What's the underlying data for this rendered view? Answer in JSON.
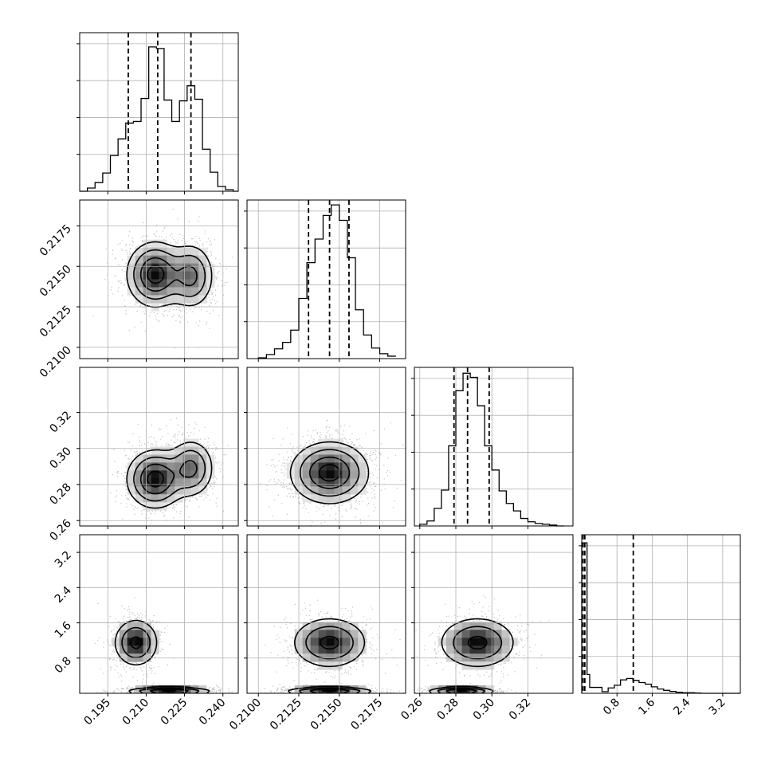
{
  "chart_data": {
    "type": "corner",
    "title": "",
    "parameters": [
      {
        "id": "p0",
        "label": "",
        "range": [
          0.184,
          0.246
        ],
        "ticks": [
          0.195,
          0.21,
          0.225,
          0.24
        ],
        "tick_labels": [
          "0.195",
          "0.210",
          "0.225",
          "0.240"
        ],
        "quantiles": [
          0.203,
          0.2145,
          0.2275
        ],
        "histogram": {
          "bin_edges": [
            0.184,
            0.187,
            0.19,
            0.193,
            0.196,
            0.199,
            0.202,
            0.205,
            0.208,
            0.211,
            0.214,
            0.217,
            0.22,
            0.223,
            0.226,
            0.229,
            0.232,
            0.235,
            0.238,
            0.241,
            0.244,
            0.246
          ],
          "counts": [
            0,
            4,
            11,
            23,
            45,
            66,
            86,
            88,
            117,
            182,
            180,
            115,
            88,
            114,
            133,
            116,
            53,
            24,
            6,
            2,
            0
          ],
          "ylim": [
            0,
            200
          ]
        }
      },
      {
        "id": "p1",
        "label": "",
        "range": [
          0.2093,
          0.2191
        ],
        "ticks": [
          0.21,
          0.2125,
          0.215,
          0.2175
        ],
        "tick_labels": [
          "0.2100",
          "0.2125",
          "0.2150",
          "0.2175"
        ],
        "quantiles": [
          0.2131,
          0.2144,
          0.2156
        ],
        "histogram": {
          "bin_edges": [
            0.21,
            0.2105,
            0.211,
            0.2115,
            0.212,
            0.2125,
            0.213,
            0.2135,
            0.214,
            0.2145,
            0.215,
            0.2155,
            0.216,
            0.2165,
            0.217,
            0.2175,
            0.218,
            0.2185
          ],
          "counts": [
            1,
            5,
            12,
            20,
            35,
            74,
            118,
            147,
            176,
            189,
            170,
            124,
            60,
            29,
            13,
            6,
            3
          ],
          "ylim": [
            0,
            195
          ]
        }
      },
      {
        "id": "p2",
        "label": "",
        "range": [
          0.257,
          0.345
        ],
        "ticks": [
          0.26,
          0.28,
          0.3,
          0.32
        ],
        "tick_labels": [
          "0.26",
          "0.28",
          "0.30",
          "0.32"
        ],
        "quantiles": [
          0.279,
          0.2865,
          0.2985
        ],
        "histogram": {
          "bin_edges": [
            0.26,
            0.264,
            0.268,
            0.272,
            0.276,
            0.28,
            0.284,
            0.288,
            0.292,
            0.296,
            0.3,
            0.304,
            0.308,
            0.312,
            0.316,
            0.32,
            0.324,
            0.328,
            0.332,
            0.336,
            0.34
          ],
          "counts": [
            2,
            6,
            21,
            43,
            96,
            162,
            183,
            178,
            144,
            96,
            67,
            42,
            27,
            18,
            9,
            5,
            3,
            2,
            1,
            0
          ],
          "ylim": [
            0,
            190
          ]
        }
      },
      {
        "id": "p3",
        "label": "",
        "range": [
          0.0,
          3.6
        ],
        "ticks": [
          0.8,
          1.6,
          2.4,
          3.2
        ],
        "tick_labels": [
          "0.8",
          "1.6",
          "2.4",
          "3.2"
        ],
        "quantiles": [
          0.03,
          0.07,
          1.17
        ],
        "histogram": {
          "bin_edges": [
            0.0,
            0.06,
            0.12,
            0.18,
            0.32,
            0.46,
            0.6,
            0.74,
            0.88,
            1.02,
            1.16,
            1.3,
            1.44,
            1.58,
            1.72,
            1.86,
            2.0,
            2.14,
            2.28,
            2.42,
            2.56,
            2.7,
            2.84,
            3.0,
            3.2,
            3.4,
            3.6
          ],
          "counts": [
            560,
            560,
            70,
            22,
            22,
            6,
            20,
            30,
            50,
            55,
            48,
            40,
            34,
            24,
            16,
            11,
            7,
            4,
            2,
            2,
            1,
            0,
            0,
            0,
            0,
            0
          ],
          "ylim": [
            0,
            590
          ]
        }
      }
    ],
    "pairs": [
      {
        "x": "p0",
        "y": "p1",
        "modes": [
          {
            "cx": 0.2135,
            "cy": 0.2145,
            "sx": 0.0055,
            "sy": 0.001,
            "w": 0.6
          },
          {
            "cx": 0.2275,
            "cy": 0.2144,
            "sx": 0.0045,
            "sy": 0.001,
            "w": 0.4
          }
        ]
      },
      {
        "x": "p0",
        "y": "p2",
        "modes": [
          {
            "cx": 0.2135,
            "cy": 0.283,
            "sx": 0.0055,
            "sy": 0.008,
            "w": 0.6
          },
          {
            "cx": 0.2275,
            "cy": 0.289,
            "sx": 0.0045,
            "sy": 0.008,
            "w": 0.4
          }
        ]
      },
      {
        "x": "p0",
        "y": "p3",
        "modes": [
          {
            "cx": 0.206,
            "cy": 1.15,
            "sx": 0.0045,
            "sy": 0.28,
            "w": 0.4
          },
          {
            "cx": 0.219,
            "cy": 0.04,
            "sx": 0.008,
            "sy": 0.05,
            "w": 0.6
          }
        ]
      },
      {
        "x": "p1",
        "y": "p2",
        "modes": [
          {
            "cx": 0.2144,
            "cy": 0.2865,
            "sx": 0.0012,
            "sy": 0.0085,
            "w": 1.0
          }
        ]
      },
      {
        "x": "p1",
        "y": "p3",
        "modes": [
          {
            "cx": 0.2144,
            "cy": 1.15,
            "sx": 0.0012,
            "sy": 0.3,
            "w": 0.4
          },
          {
            "cx": 0.2144,
            "cy": 0.04,
            "sx": 0.0013,
            "sy": 0.05,
            "w": 0.6
          }
        ]
      },
      {
        "x": "p2",
        "y": "p3",
        "modes": [
          {
            "cx": 0.292,
            "cy": 1.15,
            "sx": 0.011,
            "sy": 0.3,
            "w": 0.4
          },
          {
            "cx": 0.283,
            "cy": 0.04,
            "sx": 0.009,
            "sy": 0.05,
            "w": 0.6
          }
        ]
      }
    ],
    "contour_levels": [
      "0.5σ",
      "1σ",
      "1.5σ",
      "2σ"
    ],
    "grid": true,
    "legend": "none",
    "colors": {
      "histogram": "#000000",
      "quantile_line": "#000000",
      "contour": "#000000",
      "scatter": "#8a8a8a",
      "grid": "#b0b0b0"
    }
  }
}
